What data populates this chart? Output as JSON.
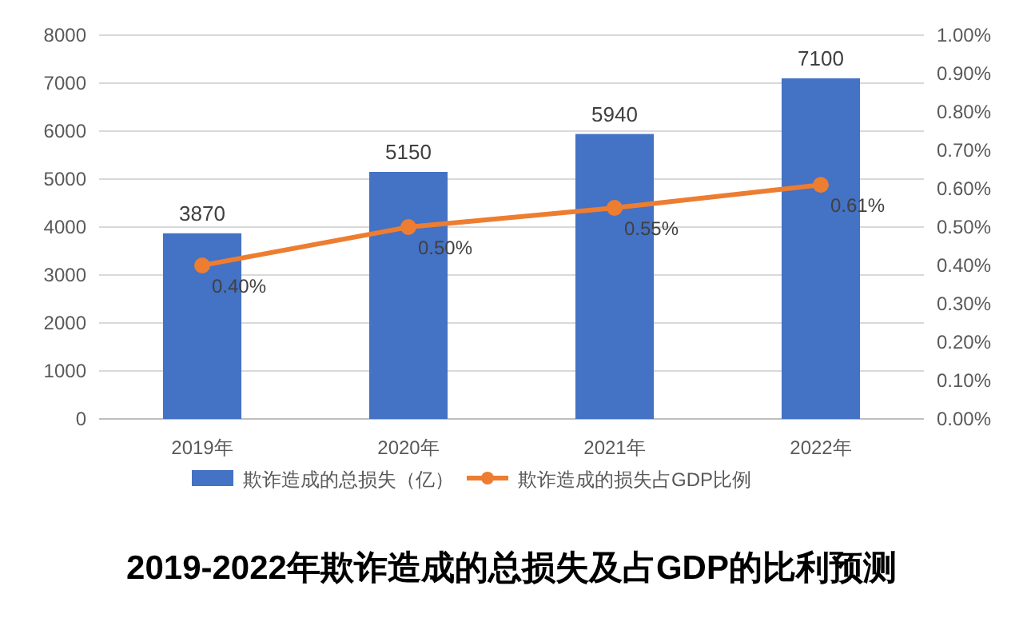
{
  "chart_data": {
    "type": "bar",
    "title": "2019-2022年欺诈造成的总损失及占GDP的比利预测",
    "categories": [
      "2019年",
      "2020年",
      "2021年",
      "2022年"
    ],
    "series": [
      {
        "name": "欺诈造成的总损失（亿）",
        "color": "#4472c4",
        "values": [
          3870,
          5150,
          5940,
          7100
        ],
        "value_labels": [
          "3870",
          "5150",
          "5940",
          "7100"
        ]
      },
      {
        "name": "欺诈造成的损失占GDP比例",
        "type": "line",
        "axis": "y2",
        "color": "#ed7d31",
        "marker": "circle",
        "values": [
          0.4,
          0.5,
          0.55,
          0.61
        ],
        "value_labels": [
          "0.40%",
          "0.50%",
          "0.55%",
          "0.61%"
        ]
      }
    ],
    "ylim": [
      0,
      8000
    ],
    "yticks": [
      0,
      1000,
      2000,
      3000,
      4000,
      5000,
      6000,
      7000,
      8000
    ],
    "y2lim": [
      0,
      1.0
    ],
    "y2ticks": [
      {
        "value": 0,
        "label": "0.00%"
      },
      {
        "value": 0.1,
        "label": "0.10%"
      },
      {
        "value": 0.2,
        "label": "0.20%"
      },
      {
        "value": 0.3,
        "label": "0.30%"
      },
      {
        "value": 0.4,
        "label": "0.40%"
      },
      {
        "value": 0.5,
        "label": "0.50%"
      },
      {
        "value": 0.6,
        "label": "0.60%"
      },
      {
        "value": 0.7,
        "label": "0.70%"
      },
      {
        "value": 0.8,
        "label": "0.80%"
      },
      {
        "value": 0.9,
        "label": "0.90%"
      },
      {
        "value": 1.0,
        "label": "1.00%"
      }
    ],
    "grid": "y",
    "legend": "bottom"
  }
}
